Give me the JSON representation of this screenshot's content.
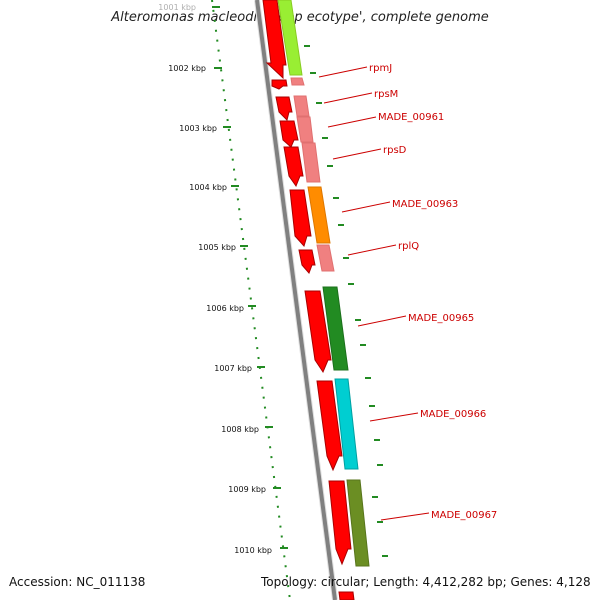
{
  "title": "Alteromonas macleodii 'Deep ecotype', complete genome",
  "footer": {
    "accession": "Accession: NC_011138",
    "topology": "Topology: circular; Length: 4,412,282 bp; Genes: 4,128"
  },
  "ruler_labels": [
    "1001 kbp",
    "1002 kbp",
    "1003 kbp",
    "1004 kbp",
    "1005 kbp",
    "1006 kbp",
    "1007 kbp",
    "1008 kbp",
    "1009 kbp",
    "1010 kbp"
  ],
  "gene_labels": [
    "rpmJ",
    "rpsM",
    "MADE_00961",
    "rpsD",
    "MADE_00963",
    "rplQ",
    "MADE_00965",
    "MADE_00966",
    "MADE_00967"
  ],
  "colors": {
    "backbone": "#808080",
    "gene_red": "#ff0000",
    "ruler": "#228b22",
    "label": "#cc0000"
  }
}
